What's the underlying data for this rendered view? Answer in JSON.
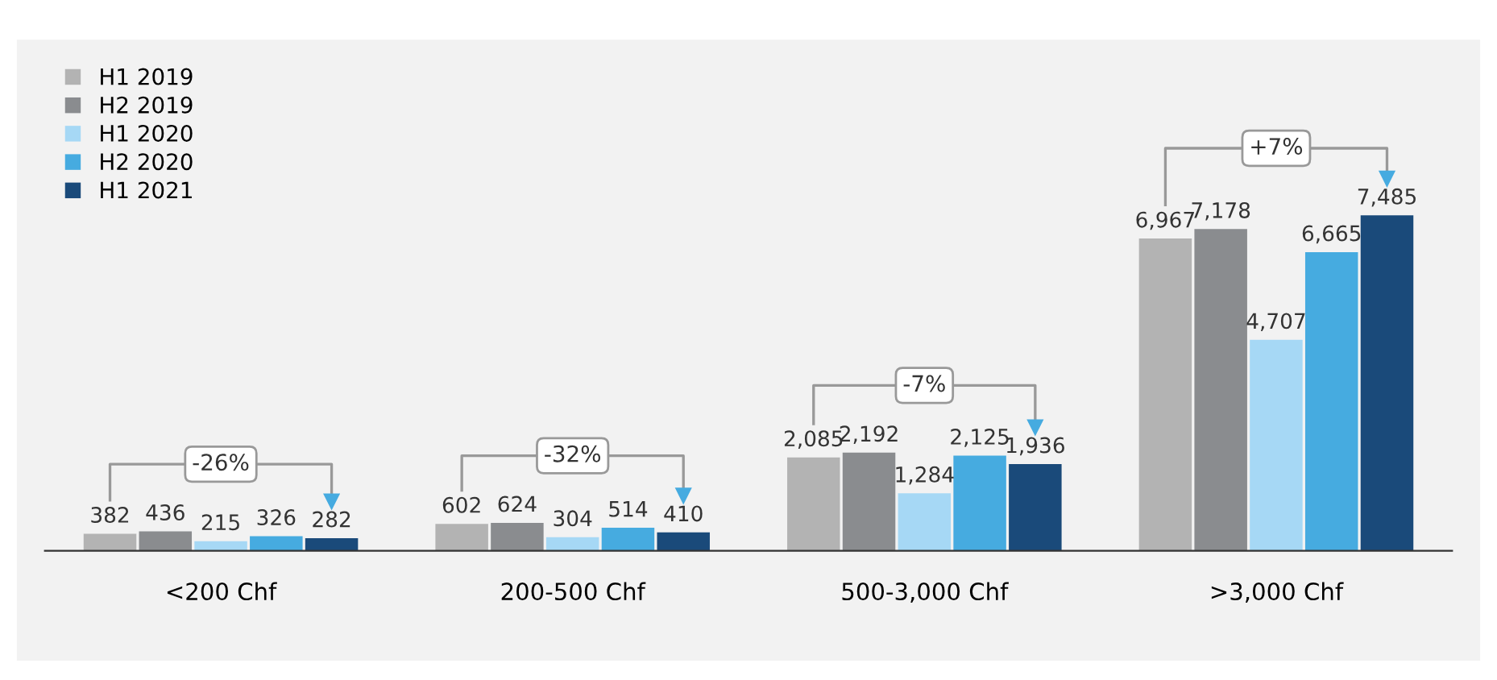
{
  "chart_data": {
    "type": "bar",
    "categories": [
      "<200 Chf",
      "200-500 Chf",
      "500-3,000 Chf",
      ">3,000 Chf"
    ],
    "series": [
      {
        "name": "H1 2019",
        "color": "#b3b3b3",
        "values": [
          382,
          602,
          2085,
          6967
        ],
        "value_labels": [
          "382",
          "602",
          "2,085",
          "6,967"
        ]
      },
      {
        "name": "H2 2019",
        "color": "#8a8c8f",
        "values": [
          436,
          624,
          2192,
          7178
        ],
        "value_labels": [
          "436",
          "624",
          "2,192",
          "7,178"
        ]
      },
      {
        "name": "H1 2020",
        "color": "#a6d8f5",
        "values": [
          215,
          304,
          1284,
          4707
        ],
        "value_labels": [
          "215",
          "304",
          "1,284",
          "4,707"
        ]
      },
      {
        "name": "H2 2020",
        "color": "#46abe0",
        "values": [
          326,
          514,
          2125,
          6665
        ],
        "value_labels": [
          "326",
          "514",
          "2,125",
          "6,665"
        ]
      },
      {
        "name": "H1 2021",
        "color": "#1a4a7a",
        "values": [
          282,
          410,
          1936,
          7485
        ],
        "value_labels": [
          "282",
          "410",
          "1,936",
          "7,485"
        ]
      }
    ],
    "legend": "top left",
    "grid": false,
    "annotations": [
      "-26%",
      "-32%",
      "-7%",
      "+7%"
    ]
  }
}
